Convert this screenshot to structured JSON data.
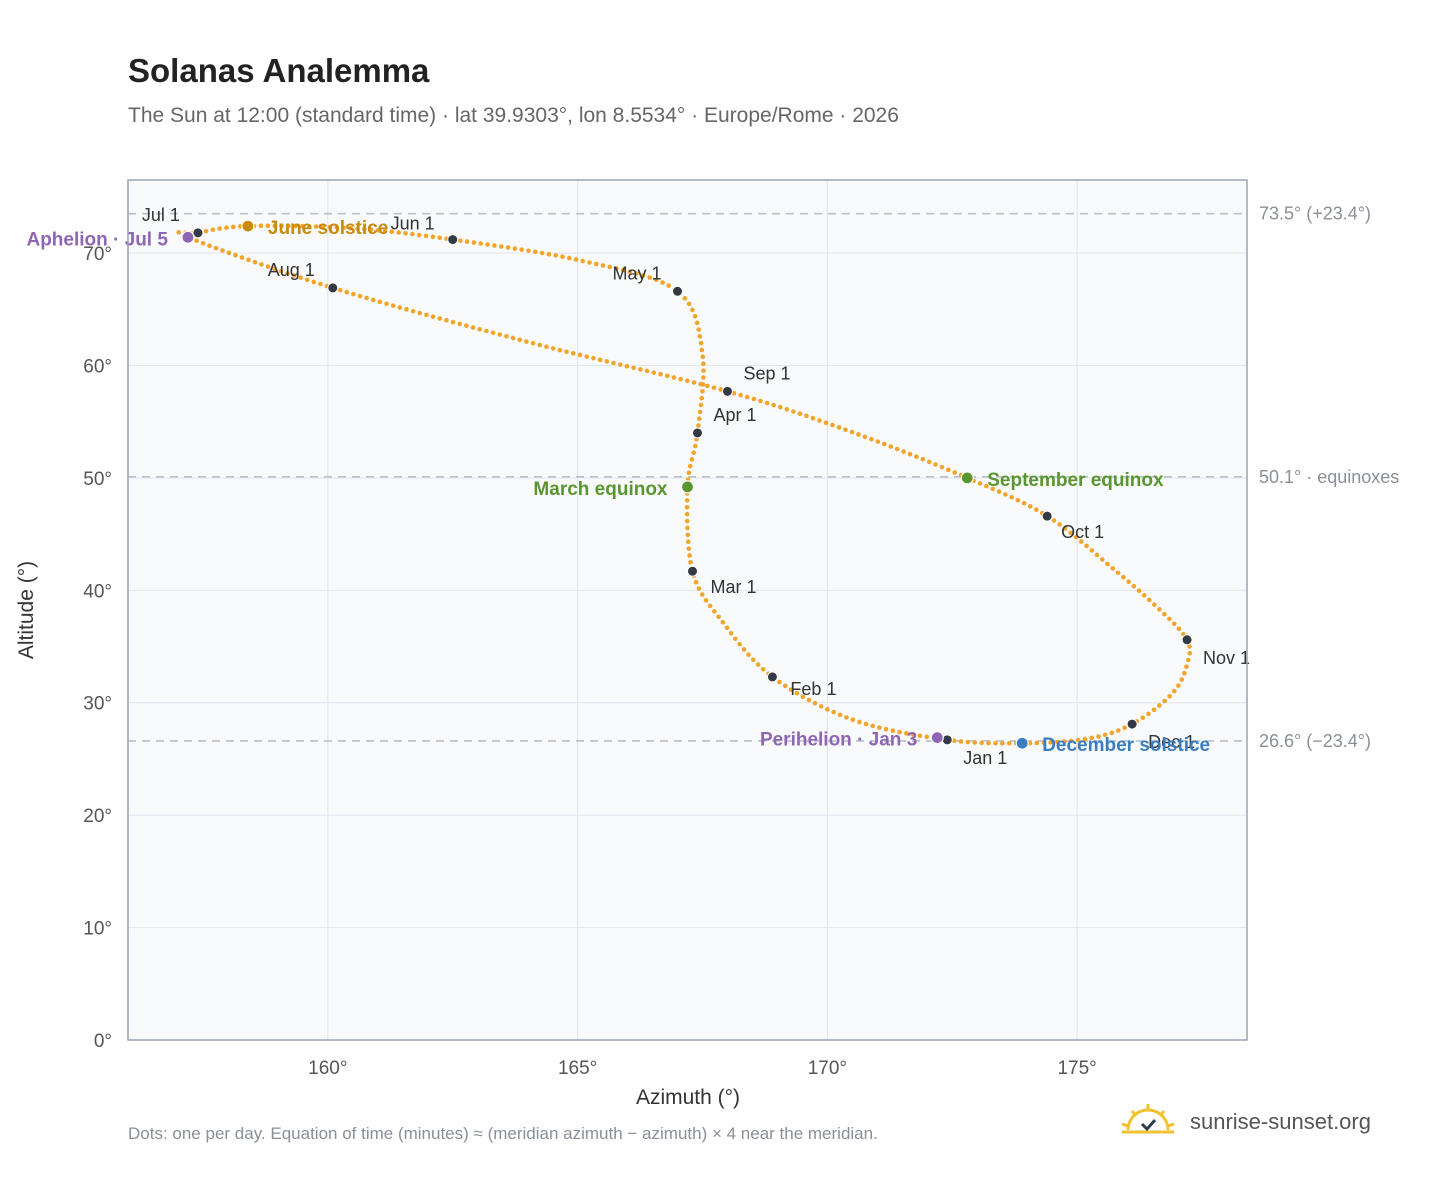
{
  "title": "Solanas Analemma",
  "subtitle": "The Sun at 12:00 (standard time) · lat 39.9303°, lon 8.5534° · Europe/Rome · 2026",
  "footnote": "Dots: one per day. Equation of time (minutes) ≈ (meridian azimuth − azimuth) × 4 near the meridian.",
  "brand": {
    "name": "sunrise-sunset.org",
    "icon": "sun-logo-icon"
  },
  "colors": {
    "curve": "#f2a52a",
    "month_marker": "#343a44",
    "equinox": "#5a9630",
    "june_solstice": "#c88b0e",
    "december_solstice": "#3a7dc0",
    "apsis": "#8e66b4",
    "reference_line": "#b8c0cc",
    "plot_background": "#f8fafc",
    "grid": "#e4e8ee",
    "frame": "#9aa3b2"
  },
  "chart_data": {
    "type": "scatter",
    "xlabel": "Azimuth (°)",
    "ylabel": "Altitude (°)",
    "xlim": [
      156.0,
      178.4
    ],
    "ylim": [
      0,
      76.5
    ],
    "xticks": [
      160,
      165,
      170,
      175
    ],
    "xtick_labels": [
      "160°",
      "165°",
      "170°",
      "175°"
    ],
    "yticks": [
      0,
      10,
      20,
      30,
      40,
      50,
      60,
      70
    ],
    "ytick_labels": [
      "0°",
      "10°",
      "20°",
      "30°",
      "40°",
      "50°",
      "60°",
      "70°"
    ],
    "grid": true,
    "reference_lines": [
      {
        "y": 73.5,
        "label": "73.5° (+23.4°)"
      },
      {
        "y": 50.1,
        "label": "50.1° · equinoxes"
      },
      {
        "y": 26.6,
        "label": "26.6° (−23.4°)"
      }
    ],
    "series": [
      {
        "marker_style": "daily dots",
        "knots": [
          [
            172.4,
            26.7
          ],
          [
            173.9,
            26.4
          ],
          [
            175.2,
            26.8
          ],
          [
            176.1,
            28.1
          ],
          [
            176.9,
            30.8
          ],
          [
            177.2,
            33.4
          ],
          [
            177.2,
            35.6
          ],
          [
            176.6,
            38.5
          ],
          [
            175.7,
            42.0
          ],
          [
            174.4,
            46.6
          ],
          [
            172.8,
            50.0
          ],
          [
            170.6,
            53.9
          ],
          [
            168.0,
            57.7
          ],
          [
            164.0,
            62.1
          ],
          [
            160.1,
            66.9
          ],
          [
            157.2,
            71.4
          ],
          [
            157.4,
            71.8
          ],
          [
            158.4,
            72.4
          ],
          [
            160.5,
            72.2
          ],
          [
            162.5,
            71.2
          ],
          [
            165.1,
            69.3
          ],
          [
            167.0,
            66.6
          ],
          [
            167.5,
            61.0
          ],
          [
            167.4,
            54.0
          ],
          [
            167.2,
            49.2
          ],
          [
            167.3,
            41.7
          ],
          [
            167.9,
            37.2
          ],
          [
            168.9,
            32.3
          ],
          [
            170.5,
            28.5
          ],
          [
            172.4,
            26.7
          ]
        ]
      }
    ],
    "month_markers": [
      {
        "label": "Jan 1",
        "x": 172.4,
        "y": 26.7
      },
      {
        "label": "Feb 1",
        "x": 168.9,
        "y": 32.3
      },
      {
        "label": "Mar 1",
        "x": 167.3,
        "y": 41.7
      },
      {
        "label": "Apr 1",
        "x": 167.4,
        "y": 54.0
      },
      {
        "label": "May 1",
        "x": 167.0,
        "y": 66.6
      },
      {
        "label": "Jun 1",
        "x": 162.5,
        "y": 71.2
      },
      {
        "label": "Jul 1",
        "x": 157.4,
        "y": 71.8
      },
      {
        "label": "Aug 1",
        "x": 160.1,
        "y": 66.9
      },
      {
        "label": "Sep 1",
        "x": 168.0,
        "y": 57.7
      },
      {
        "label": "Oct 1",
        "x": 174.4,
        "y": 46.6
      },
      {
        "label": "Nov 1",
        "x": 177.2,
        "y": 35.6
      },
      {
        "label": "Dec 1",
        "x": 176.1,
        "y": 28.1
      }
    ],
    "events": [
      {
        "label": "March equinox",
        "x": 167.2,
        "y": 49.2,
        "color_key": "equinox"
      },
      {
        "label": "June solstice",
        "x": 158.4,
        "y": 72.4,
        "color_key": "june_solstice"
      },
      {
        "label": "September equinox",
        "x": 172.8,
        "y": 50.0,
        "color_key": "equinox"
      },
      {
        "label": "December solstice",
        "x": 173.9,
        "y": 26.4,
        "color_key": "december_solstice"
      },
      {
        "label": "Aphelion · Jul 5",
        "x": 157.2,
        "y": 71.4,
        "color_key": "apsis"
      },
      {
        "label": "Perihelion · Jan 3",
        "x": 172.2,
        "y": 26.9,
        "color_key": "apsis"
      }
    ]
  }
}
